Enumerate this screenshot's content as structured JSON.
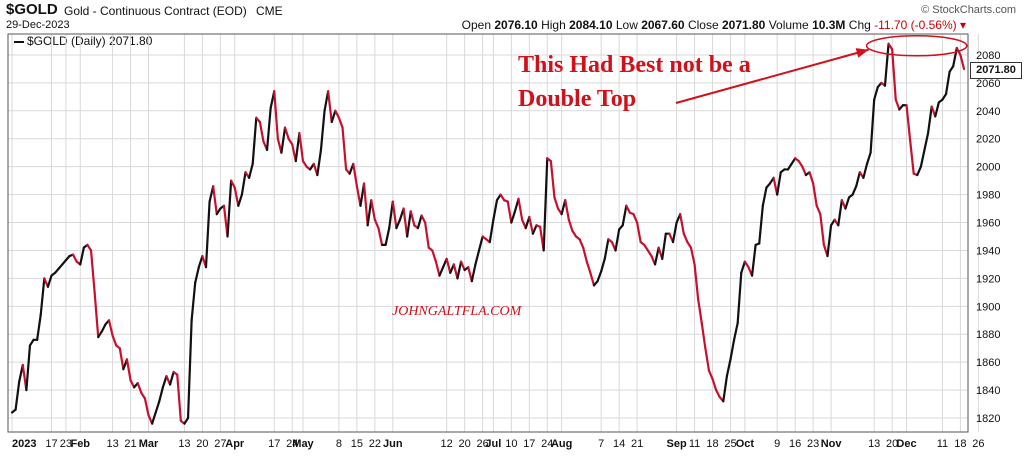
{
  "header": {
    "symbol": "$GOLD",
    "description": "Gold - Continuous Contract (EOD)",
    "exchange": "CME",
    "date": "29-Dec-2023",
    "open_label": "Open",
    "open_value": "2076.10",
    "high_label": "High",
    "high_value": "2084.10",
    "low_label": "Low",
    "low_value": "2067.60",
    "close_label": "Close",
    "close_value": "2071.80",
    "volume_label": "Volume",
    "volume_value": "10.3M",
    "chg_label": "Chg",
    "chg_value": "-11.70 (-0.56%)",
    "brand": "© StockCharts.com"
  },
  "legend": {
    "label": "$GOLD (Daily) 2071.80"
  },
  "last_price_label": "2071.80",
  "annotation": {
    "line1": "This Had Best not be a",
    "line2": "Double Top"
  },
  "watermark": "JOHNGALTFLA.COM",
  "colors": {
    "up": "#111111",
    "down": "#c8102e",
    "annotation": "#d0101a",
    "grid": "#d9d9d9"
  },
  "chart_data": {
    "type": "line",
    "series_name": "$GOLD (Daily)",
    "ylim": [
      1810,
      2095
    ],
    "y_ticks": [
      1820,
      1840,
      1860,
      1880,
      1900,
      1920,
      1940,
      1960,
      1980,
      2000,
      2020,
      2040,
      2060,
      2080
    ],
    "x_tick_labels": [
      "2023",
      "17",
      "23",
      "Feb",
      "13",
      "21",
      "Mar",
      "13",
      "20",
      "27",
      "Apr",
      "17",
      "24",
      "May",
      "8",
      "15",
      "22",
      "Jun",
      "12",
      "20",
      "26",
      "Jul",
      "10",
      "17",
      "24",
      "Aug",
      "7",
      "14",
      "21",
      "Sep",
      "11",
      "18",
      "25",
      "Oct",
      "9",
      "16",
      "23",
      "Nov",
      "13",
      "20",
      "Dec",
      "11",
      "18",
      "26"
    ],
    "x_tick_index": [
      0,
      11,
      15,
      19,
      28,
      33,
      38,
      48,
      53,
      58,
      62,
      73,
      78,
      81,
      91,
      96,
      101,
      106,
      121,
      126,
      131,
      134,
      139,
      144,
      149,
      153,
      164,
      169,
      174,
      185,
      190,
      195,
      200,
      204,
      213,
      218,
      223,
      228,
      240,
      245,
      249,
      259,
      264,
      269
    ],
    "close": [
      1824,
      1826,
      1846,
      1858,
      1840,
      1872,
      1876,
      1876,
      1894,
      1920,
      1914,
      1922,
      1924,
      1927,
      1930,
      1933,
      1936,
      1937,
      1932,
      1930,
      1942,
      1944,
      1940,
      1910,
      1878,
      1882,
      1887,
      1890,
      1879,
      1872,
      1870,
      1855,
      1862,
      1847,
      1842,
      1845,
      1838,
      1834,
      1822,
      1816,
      1824,
      1832,
      1842,
      1850,
      1844,
      1853,
      1851,
      1818,
      1816,
      1820,
      1890,
      1917,
      1928,
      1936,
      1928,
      1975,
      1986,
      1966,
      1970,
      1972,
      1950,
      1990,
      1985,
      1972,
      1980,
      1996,
      1992,
      2002,
      2035,
      2032,
      2018,
      2012,
      2042,
      2054,
      2020,
      2010,
      2028,
      2020,
      2016,
      2004,
      2024,
      2004,
      2000,
      1998,
      2002,
      1994,
      2012,
      2040,
      2054,
      2032,
      2040,
      2035,
      2028,
      1998,
      1995,
      2002,
      1986,
      1972,
      1988,
      1958,
      1976,
      1962,
      1956,
      1944,
      1944,
      1956,
      1975,
      1956,
      1962,
      1970,
      1950,
      1968,
      1958,
      1956,
      1965,
      1960,
      1942,
      1940,
      1932,
      1922,
      1928,
      1934,
      1924,
      1930,
      1920,
      1932,
      1926,
      1928,
      1918,
      1930,
      1940,
      1950,
      1948,
      1946,
      1962,
      1976,
      1980,
      1976,
      1975,
      1960,
      1968,
      1977,
      1962,
      1956,
      1964,
      1952,
      1958,
      1957,
      1940,
      2006,
      2004,
      1978,
      1970,
      1966,
      1976,
      1962,
      1954,
      1950,
      1948,
      1942,
      1932,
      1924,
      1915,
      1918,
      1925,
      1934,
      1948,
      1946,
      1940,
      1955,
      1958,
      1972,
      1967,
      1966,
      1960,
      1946,
      1944,
      1940,
      1936,
      1930,
      1942,
      1934,
      1952,
      1952,
      1946,
      1960,
      1966,
      1952,
      1946,
      1942,
      1930,
      1905,
      1888,
      1870,
      1854,
      1848,
      1840,
      1835,
      1832,
      1850,
      1862,
      1876,
      1888,
      1924,
      1932,
      1928,
      1922,
      1944,
      1945,
      1972,
      1985,
      1988,
      1992,
      1980,
      1996,
      1998,
      1998,
      2002,
      2006,
      2004,
      2000,
      1994,
      1996,
      1988,
      1972,
      1966,
      1944,
      1936,
      1958,
      1962,
      1958,
      1976,
      1970,
      1978,
      1980,
      1986,
      1996,
      1992,
      2002,
      2010,
      2048,
      2057,
      2060,
      2058,
      2088,
      2084,
      2048,
      2041,
      2044,
      2044,
      2019,
      1995,
      1994,
      2000,
      2012,
      2024,
      2043,
      2036,
      2046,
      2048,
      2052,
      2068,
      2072,
      2085,
      2080,
      2070
    ]
  }
}
